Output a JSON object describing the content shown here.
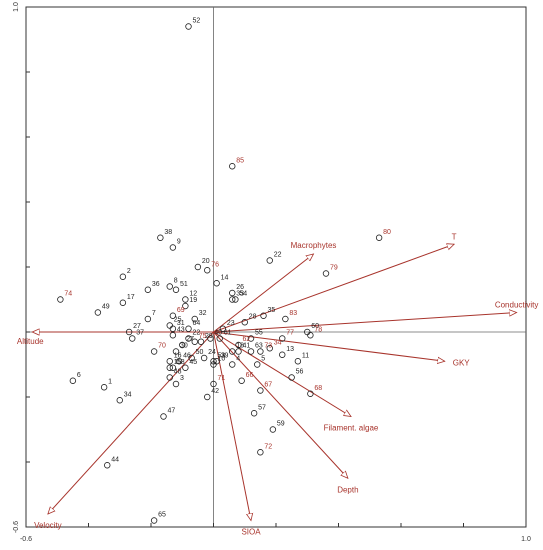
{
  "chart_data": {
    "type": "scatter",
    "subtype": "ordination-biplot",
    "title": "",
    "xlabel": "",
    "ylabel": "",
    "xlim": [
      -0.6,
      1.0
    ],
    "ylim": [
      -0.6,
      1.0
    ],
    "x_tick_labels": [
      {
        "value": -0.6,
        "label": "-0.6"
      },
      {
        "value": 1.0,
        "label": "1.0"
      }
    ],
    "y_tick_labels": [
      {
        "value": 1.0,
        "label": "1.0"
      },
      {
        "value": -0.6,
        "label": "-0.6"
      }
    ],
    "ticks": [
      -0.6,
      -0.4,
      -0.2,
      0.0,
      0.2,
      0.4,
      0.6,
      0.8,
      1.0
    ],
    "grid": false,
    "axis_lines_at_zero": true,
    "colors": {
      "samples": "#222222",
      "variables": "#a8342c",
      "red_sites": "#a8342c"
    },
    "samples": [
      {
        "label": "52",
        "x": -0.08,
        "y": 0.94
      },
      {
        "label": "85",
        "x": 0.06,
        "y": 0.51,
        "color": "#a8342c"
      },
      {
        "label": "80",
        "x": 0.53,
        "y": 0.29,
        "color": "#a8342c"
      },
      {
        "label": "79",
        "x": 0.36,
        "y": 0.18,
        "color": "#a8342c"
      },
      {
        "label": "38",
        "x": -0.17,
        "y": 0.29
      },
      {
        "label": "9",
        "x": -0.13,
        "y": 0.26
      },
      {
        "label": "22",
        "x": 0.18,
        "y": 0.22
      },
      {
        "label": "20",
        "x": -0.05,
        "y": 0.2
      },
      {
        "label": "76",
        "x": -0.02,
        "y": 0.19,
        "color": "#a8342c"
      },
      {
        "label": "2",
        "x": -0.29,
        "y": 0.17
      },
      {
        "label": "14",
        "x": 0.01,
        "y": 0.15
      },
      {
        "label": "26",
        "x": 0.06,
        "y": 0.12
      },
      {
        "label": "36",
        "x": -0.21,
        "y": 0.13
      },
      {
        "label": "8",
        "x": -0.14,
        "y": 0.14
      },
      {
        "label": "51",
        "x": -0.12,
        "y": 0.13
      },
      {
        "label": "33",
        "x": 0.06,
        "y": 0.1
      },
      {
        "label": "54",
        "x": 0.07,
        "y": 0.1
      },
      {
        "label": "74",
        "x": -0.49,
        "y": 0.1,
        "color": "#a8342c"
      },
      {
        "label": "12",
        "x": -0.09,
        "y": 0.1
      },
      {
        "label": "19",
        "x": -0.09,
        "y": 0.08
      },
      {
        "label": "17",
        "x": -0.29,
        "y": 0.09
      },
      {
        "label": "49",
        "x": -0.37,
        "y": 0.06
      },
      {
        "label": "7",
        "x": -0.21,
        "y": 0.04
      },
      {
        "label": "69",
        "x": -0.13,
        "y": 0.05,
        "color": "#a8342c"
      },
      {
        "label": "32",
        "x": -0.06,
        "y": 0.04
      },
      {
        "label": "35",
        "x": 0.16,
        "y": 0.05
      },
      {
        "label": "83",
        "x": 0.23,
        "y": 0.04,
        "color": "#a8342c"
      },
      {
        "label": "25",
        "x": -0.14,
        "y": 0.02
      },
      {
        "label": "31",
        "x": -0.13,
        "y": 0.01
      },
      {
        "label": "28",
        "x": 0.1,
        "y": 0.03
      },
      {
        "label": "60",
        "x": 0.3,
        "y": 0.0
      },
      {
        "label": "23",
        "x": 0.03,
        "y": 0.01
      },
      {
        "label": "64",
        "x": -0.08,
        "y": 0.01
      },
      {
        "label": "27",
        "x": -0.27,
        "y": 0.0
      },
      {
        "label": "37",
        "x": -0.26,
        "y": -0.02
      },
      {
        "label": "43",
        "x": -0.13,
        "y": -0.01
      },
      {
        "label": "22b",
        "x": -0.08,
        "y": -0.02,
        "label_text": "22"
      },
      {
        "label": "75",
        "x": -0.06,
        "y": -0.03,
        "color": "#a8342c"
      },
      {
        "label": "29",
        "x": -0.04,
        "y": -0.03
      },
      {
        "label": "40",
        "x": -0.01,
        "y": -0.02
      },
      {
        "label": "61",
        "x": 0.02,
        "y": -0.02
      },
      {
        "label": "55",
        "x": 0.12,
        "y": -0.02
      },
      {
        "label": "77",
        "x": 0.22,
        "y": -0.02,
        "color": "#a8342c"
      },
      {
        "label": "78",
        "x": 0.31,
        "y": -0.01,
        "color": "#a8342c"
      },
      {
        "label": "62",
        "x": 0.08,
        "y": -0.04,
        "color": "#a8342c"
      },
      {
        "label": "34b",
        "x": 0.18,
        "y": -0.05,
        "color": "#a8342c",
        "label_text": "34"
      },
      {
        "label": "27b",
        "x": -0.1,
        "y": -0.04,
        "label_text": "27"
      },
      {
        "label": "70",
        "x": -0.19,
        "y": -0.06,
        "color": "#a8342c"
      },
      {
        "label": "30",
        "x": -0.12,
        "y": -0.06
      },
      {
        "label": "63",
        "x": 0.12,
        "y": -0.06
      },
      {
        "label": "13",
        "x": 0.22,
        "y": -0.07
      },
      {
        "label": "11",
        "x": 0.27,
        "y": -0.09
      },
      {
        "label": "41",
        "x": 0.08,
        "y": -0.06
      },
      {
        "label": "18",
        "x": 0.06,
        "y": -0.06
      },
      {
        "label": "73",
        "x": 0.15,
        "y": -0.06,
        "color": "#a8342c"
      },
      {
        "label": "16",
        "x": -0.14,
        "y": -0.09
      },
      {
        "label": "46",
        "x": -0.11,
        "y": -0.09
      },
      {
        "label": "50",
        "x": -0.07,
        "y": -0.08
      },
      {
        "label": "24",
        "x": -0.03,
        "y": -0.08
      },
      {
        "label": "53",
        "x": 0.0,
        "y": -0.09
      },
      {
        "label": "39",
        "x": 0.01,
        "y": -0.09
      },
      {
        "label": "10",
        "x": 0.0,
        "y": -0.1
      },
      {
        "label": "4",
        "x": 0.06,
        "y": -0.1
      },
      {
        "label": "5",
        "x": 0.14,
        "y": -0.1
      },
      {
        "label": "15",
        "x": -0.14,
        "y": -0.11
      },
      {
        "label": "58",
        "x": -0.13,
        "y": -0.11
      },
      {
        "label": "45",
        "x": -0.09,
        "y": -0.11
      },
      {
        "label": "48",
        "x": -0.14,
        "y": -0.14
      },
      {
        "label": "66",
        "x": 0.09,
        "y": -0.15,
        "color": "#a8342c"
      },
      {
        "label": "56",
        "x": 0.25,
        "y": -0.14
      },
      {
        "label": "68",
        "x": 0.31,
        "y": -0.19,
        "color": "#a8342c"
      },
      {
        "label": "67",
        "x": 0.15,
        "y": -0.18,
        "color": "#a8342c"
      },
      {
        "label": "6",
        "x": -0.45,
        "y": -0.15
      },
      {
        "label": "3",
        "x": -0.12,
        "y": -0.16
      },
      {
        "label": "71",
        "x": 0.0,
        "y": -0.16,
        "color": "#a8342c"
      },
      {
        "label": "1",
        "x": -0.35,
        "y": -0.17
      },
      {
        "label": "34",
        "x": -0.3,
        "y": -0.21
      },
      {
        "label": "42",
        "x": -0.02,
        "y": -0.2
      },
      {
        "label": "47",
        "x": -0.16,
        "y": -0.26
      },
      {
        "label": "57",
        "x": 0.13,
        "y": -0.25
      },
      {
        "label": "59",
        "x": 0.19,
        "y": -0.3
      },
      {
        "label": "72",
        "x": 0.15,
        "y": -0.37,
        "color": "#a8342c"
      },
      {
        "label": "44",
        "x": -0.34,
        "y": -0.41
      },
      {
        "label": "65",
        "x": -0.19,
        "y": -0.58
      }
    ],
    "variables": [
      {
        "name": "Macrophytes",
        "x": 0.32,
        "y": 0.24
      },
      {
        "name": "T",
        "x": 0.77,
        "y": 0.27
      },
      {
        "name": "Conductivity",
        "x": 0.97,
        "y": 0.06
      },
      {
        "name": "GKY",
        "x": 0.74,
        "y": -0.09
      },
      {
        "name": "Altitude",
        "x": -0.58,
        "y": 0.0
      },
      {
        "name": "Velocity",
        "x": -0.53,
        "y": -0.56
      },
      {
        "name": "SIOA",
        "x": 0.12,
        "y": -0.58
      },
      {
        "name": "Depth",
        "x": 0.43,
        "y": -0.45
      },
      {
        "name": "Filament. algae",
        "x": 0.44,
        "y": -0.26
      }
    ]
  }
}
